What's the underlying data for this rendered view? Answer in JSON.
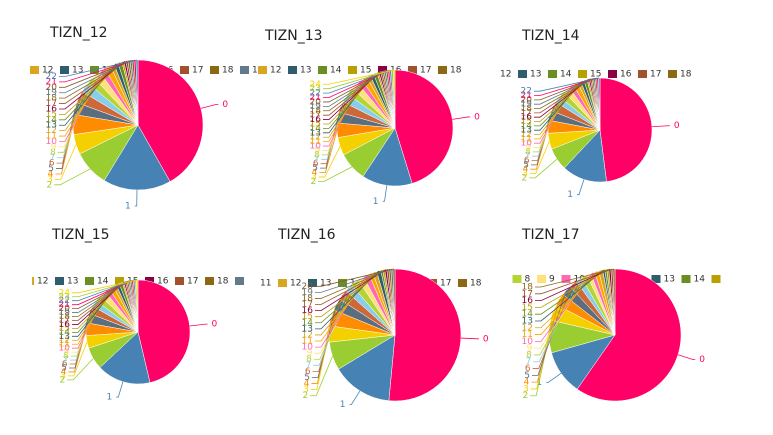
{
  "palette": [
    "#ff0066",
    "#4682b4",
    "#9acd32",
    "#f5d000",
    "#ff8c00",
    "#5a6e7f",
    "#cd6839",
    "#87ceeb",
    "#b5d334",
    "#ffe07a",
    "#ff69b4",
    "#ffa500",
    "#daa520",
    "#2e5e6e",
    "#6b8e23",
    "#b8a000",
    "#8b0045",
    "#a0522d",
    "#8b6914",
    "#607b8b",
    "#8b5a2b"
  ],
  "chart_data": [
    {
      "type": "pie",
      "title": "TIZN_12",
      "categories": [
        "0",
        "1",
        "2",
        "3",
        "4",
        "5",
        "6",
        "7",
        "8",
        "9",
        "10",
        "11",
        "12",
        "13",
        "14",
        "15",
        "16",
        "17",
        "18",
        "19",
        "20",
        "21",
        "22"
      ],
      "values": [
        42,
        17,
        9,
        5,
        5,
        3,
        3,
        2.5,
        2,
        2,
        1.5,
        1.5,
        1,
        1,
        1,
        0.5,
        0.5,
        0.5,
        0.5,
        0.5,
        0.5,
        0.5,
        0.5
      ]
    },
    {
      "type": "pie",
      "title": "TIZN_13",
      "categories": [
        "0",
        "1",
        "2",
        "3",
        "4",
        "5",
        "6",
        "7",
        "8",
        "9",
        "10",
        "11",
        "12",
        "13",
        "14",
        "15",
        "16",
        "17",
        "18",
        "19",
        "20",
        "21",
        "22",
        "23",
        "24"
      ],
      "values": [
        45,
        14,
        8,
        5,
        4,
        3,
        3,
        2.5,
        2,
        2,
        1.5,
        1.5,
        1,
        1,
        1,
        0.5,
        0.5,
        0.5,
        0.5,
        0.5,
        0.5,
        0.5,
        0.5,
        0.5,
        0.5
      ]
    },
    {
      "type": "pie",
      "title": "TIZN_14",
      "categories": [
        "0",
        "1",
        "2",
        "3",
        "4",
        "5",
        "6",
        "7",
        "8",
        "9",
        "10",
        "11",
        "12",
        "13",
        "14",
        "15",
        "16",
        "17",
        "18",
        "19",
        "20",
        "21",
        "22"
      ],
      "values": [
        48,
        14,
        7,
        5,
        4,
        3,
        3,
        2,
        2,
        2,
        1.5,
        1.5,
        1,
        1,
        1,
        0.5,
        0.5,
        0.5,
        0.5,
        0.5,
        0.5,
        0.5,
        0.5
      ]
    },
    {
      "type": "pie",
      "title": "TIZN_15",
      "categories": [
        "0",
        "1",
        "2",
        "3",
        "4",
        "5",
        "6",
        "7",
        "8",
        "9",
        "10",
        "11",
        "12",
        "13",
        "14",
        "15",
        "16",
        "17",
        "18",
        "19",
        "20",
        "21",
        "22",
        "23",
        "24"
      ],
      "values": [
        47,
        17,
        7,
        4,
        4,
        3,
        2.5,
        2,
        2,
        2,
        1.5,
        1.5,
        1,
        1,
        1,
        0.5,
        0.5,
        0.5,
        0.5,
        0.5,
        0.5,
        0.5,
        0.5,
        0.5,
        0.5
      ]
    },
    {
      "type": "pie",
      "title": "TIZN_16",
      "categories": [
        "0",
        "1",
        "2",
        "3",
        "4",
        "5",
        "6",
        "7",
        "8",
        "9",
        "10",
        "11",
        "12",
        "13",
        "14",
        "15",
        "16",
        "17",
        "18",
        "19",
        "20"
      ],
      "values": [
        52,
        15,
        7,
        4,
        4,
        3,
        2.5,
        2,
        2,
        1.5,
        1.5,
        1,
        1,
        1,
        0.5,
        0.5,
        0.5,
        0.5,
        0.5,
        0.5,
        0.5
      ]
    },
    {
      "type": "pie",
      "title": "TIZN_17",
      "categories": [
        "0",
        "1",
        "2",
        "3",
        "4",
        "5",
        "6",
        "7",
        "8",
        "9",
        "10",
        "11",
        "12",
        "13",
        "14",
        "15",
        "16",
        "17",
        "18"
      ],
      "values": [
        60,
        11,
        8,
        4,
        3,
        2.5,
        2,
        1.5,
        1.5,
        1,
        1,
        1,
        1,
        0.5,
        0.5,
        0.5,
        0.5,
        0.5,
        0.5
      ]
    }
  ]
}
